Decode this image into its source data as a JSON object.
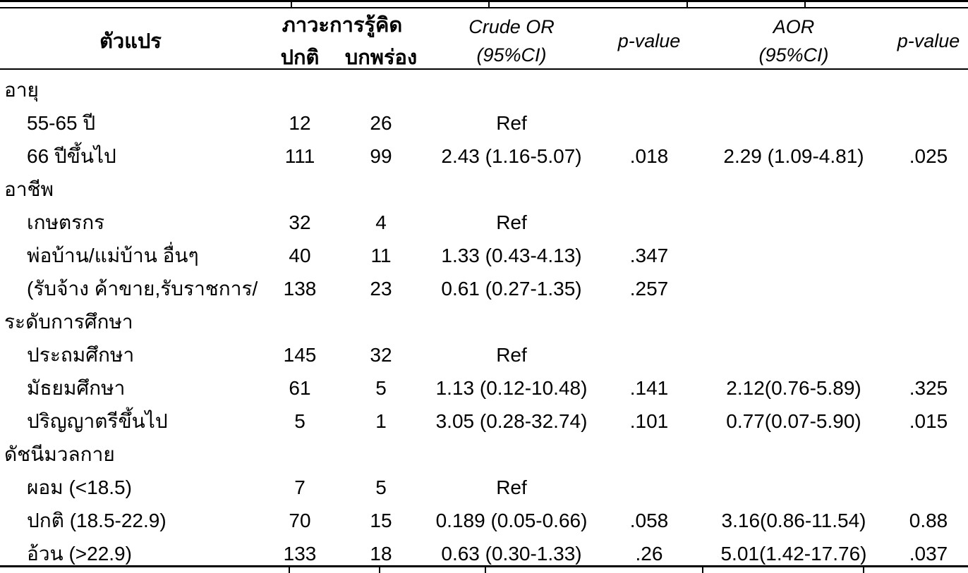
{
  "colors": {
    "text": "#000000",
    "background": "#ffffff",
    "rule": "#000000"
  },
  "table": {
    "header": {
      "variable": "ตัวแปร",
      "cognition": "ภาวะการรู้คิด",
      "normal": "ปกติ",
      "impaired": "บกพร่อง",
      "crude_or_line1": "Crude OR",
      "crude_or_line2": "(95%CI)",
      "p_value": "p-value",
      "aor_line1": "AOR",
      "aor_line2": "(95%CI)",
      "p_value2": "p-value"
    },
    "rows": [
      {
        "label": "อายุ",
        "group": true,
        "cells": [
          "",
          "",
          "",
          "",
          "",
          ""
        ]
      },
      {
        "label": "55-65 ปี",
        "group": false,
        "cells": [
          "12",
          "26",
          "Ref",
          "",
          "",
          ""
        ]
      },
      {
        "label": "66 ปีขึ้นไป",
        "group": false,
        "cells": [
          "111",
          "99",
          "2.43 (1.16-5.07)",
          ".018",
          "2.29 (1.09-4.81)",
          ".025"
        ]
      },
      {
        "label": "อาชีพ",
        "group": true,
        "cells": [
          "",
          "",
          "",
          "",
          "",
          ""
        ]
      },
      {
        "label": "เกษตรกร",
        "group": false,
        "cells": [
          "32",
          "4",
          "Ref",
          "",
          "",
          ""
        ]
      },
      {
        "label": "พ่อบ้าน/แม่บ้าน อื่นๆ",
        "group": false,
        "cells": [
          "40",
          "11",
          "1.33 (0.43-4.13)",
          ".347",
          "",
          ""
        ]
      },
      {
        "label": "(รับจ้าง ค้าขาย,รับราชการ/",
        "group": false,
        "cells": [
          "138",
          "23",
          "0.61 (0.27-1.35)",
          ".257",
          "",
          ""
        ]
      },
      {
        "label": "ระดับการศึกษา",
        "group": true,
        "cells": [
          "",
          "",
          "",
          "",
          "",
          ""
        ]
      },
      {
        "label": "ประถมศึกษา",
        "group": false,
        "cells": [
          "145",
          "32",
          "Ref",
          "",
          "",
          ""
        ]
      },
      {
        "label": "มัธยมศึกษา",
        "group": false,
        "cells": [
          "61",
          "5",
          "1.13 (0.12-10.48)",
          ".141",
          "2.12(0.76-5.89)",
          ".325"
        ]
      },
      {
        "label": "ปริญญาตรีขึ้นไป",
        "group": false,
        "cells": [
          "5",
          "1",
          "3.05 (0.28-32.74)",
          ".101",
          "0.77(0.07-5.90)",
          ".015"
        ]
      },
      {
        "label": "ดัชนีมวลกาย",
        "group": true,
        "cells": [
          "",
          "",
          "",
          "",
          "",
          ""
        ]
      },
      {
        "label": "ผอม (<18.5)",
        "group": false,
        "cells": [
          "7",
          "5",
          "Ref",
          "",
          "",
          ""
        ]
      },
      {
        "label": "ปกติ (18.5-22.9)",
        "group": false,
        "cells": [
          "70",
          "15",
          "0.189 (0.05-0.66)",
          ".058",
          "3.16(0.86-11.54)",
          "0.88"
        ]
      },
      {
        "label": "อ้วน (>22.9)",
        "group": false,
        "cells": [
          "133",
          "18",
          "0.63 (0.30-1.33)",
          ".26",
          "5.01(1.42-17.76)",
          ".037"
        ]
      }
    ]
  }
}
